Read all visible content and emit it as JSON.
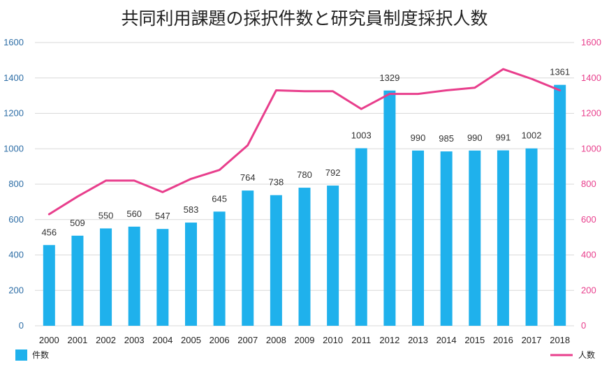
{
  "chart_data": {
    "type": "bar",
    "title": "共同利用課題の採択件数と研究員制度採択人数",
    "categories": [
      "2000",
      "2001",
      "2002",
      "2003",
      "2004",
      "2005",
      "2006",
      "2007",
      "2008",
      "2009",
      "2010",
      "2011",
      "2012",
      "2013",
      "2014",
      "2015",
      "2016",
      "2017",
      "2018"
    ],
    "series": [
      {
        "name": "件数",
        "type": "bar",
        "axis": "left",
        "color": "#1fb1ec",
        "values": [
          456,
          509,
          550,
          560,
          547,
          583,
          645,
          764,
          738,
          780,
          792,
          1003,
          1329,
          990,
          985,
          990,
          991,
          1002,
          1361
        ],
        "labels": [
          "456",
          "509",
          "550",
          "560",
          "547",
          "583",
          "645",
          "764",
          "738",
          "780",
          "792",
          "1003",
          "1329",
          "990",
          "985",
          "990",
          "991",
          "1002",
          "1361"
        ]
      },
      {
        "name": "人数",
        "type": "line",
        "axis": "right",
        "color": "#e83e8c",
        "values": [
          630,
          730,
          820,
          820,
          755,
          830,
          880,
          1020,
          1330,
          1325,
          1325,
          1225,
          1310,
          1310,
          1330,
          1345,
          1450,
          1395,
          1330
        ]
      }
    ],
    "y_left": {
      "range": [
        0,
        1600
      ],
      "ticks": [
        "0",
        "200",
        "400",
        "600",
        "800",
        "1000",
        "1200",
        "1400",
        "1600"
      ],
      "color": "#2e6ea6"
    },
    "y_right": {
      "range": [
        0,
        1600
      ],
      "ticks": [
        "0",
        "200",
        "400",
        "600",
        "800",
        "1000",
        "1200",
        "1400",
        "1600"
      ],
      "color": "#e83e8c"
    },
    "grid": true,
    "legend": [
      {
        "label": "件数",
        "placement": "bottom-left",
        "kind": "bar-swatch"
      },
      {
        "label": "人数",
        "placement": "bottom-right",
        "kind": "line-swatch"
      }
    ]
  }
}
